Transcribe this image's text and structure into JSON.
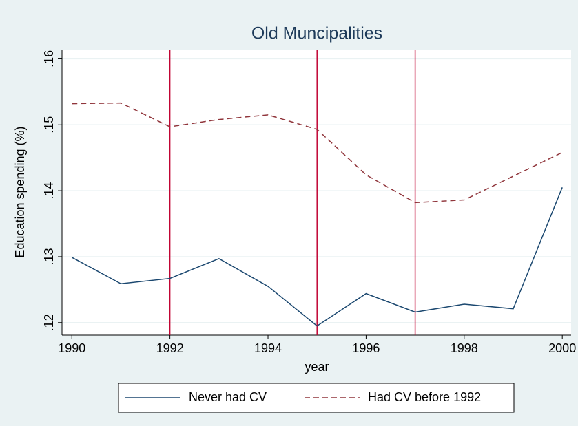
{
  "chart_data": {
    "type": "line",
    "title": "Old Muncipalities",
    "xlabel": "year",
    "ylabel": "Education spending (%)",
    "x": [
      1990,
      1991,
      1992,
      1993,
      1994,
      1995,
      1996,
      1997,
      1998,
      1999,
      2000
    ],
    "series": [
      {
        "name": "Never had CV",
        "color": "#1a476f",
        "dash": "solid",
        "values": [
          0.1299,
          0.1259,
          0.1267,
          0.1297,
          0.1255,
          0.1195,
          0.1244,
          0.1216,
          0.1228,
          0.1221,
          0.1405
        ]
      },
      {
        "name": "Had CV before 1992",
        "color": "#90353b",
        "dash": "dashed",
        "values": [
          0.1532,
          0.1533,
          0.1497,
          0.1508,
          0.1515,
          0.1493,
          0.1424,
          0.1382,
          0.1386,
          0.1422,
          0.1458
        ]
      }
    ],
    "vlines": [
      1992,
      1995,
      1997
    ],
    "vline_color": "#c10534",
    "xlim": [
      1989.8,
      2000.18
    ],
    "xticks": [
      1990,
      1992,
      1994,
      1996,
      1998,
      2000
    ],
    "ylim": [
      0.1181,
      0.1614
    ],
    "yticks": [
      {
        "value": 0.12,
        "label": ".12"
      },
      {
        "value": 0.13,
        "label": ".13"
      },
      {
        "value": 0.14,
        "label": ".14"
      },
      {
        "value": 0.15,
        "label": ".15"
      },
      {
        "value": 0.16,
        "label": ".16"
      }
    ],
    "grid": true,
    "legend": "bottom"
  }
}
